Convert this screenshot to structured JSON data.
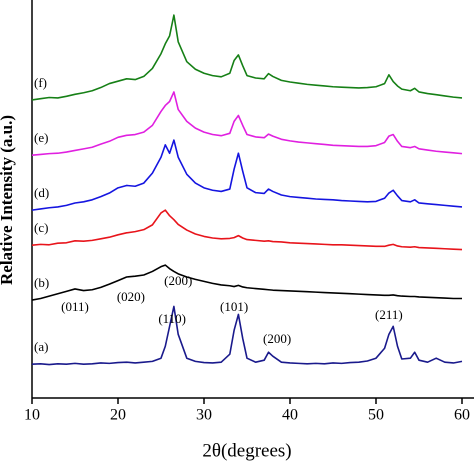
{
  "chart_data": {
    "type": "line",
    "xlabel": "2θ(degrees)",
    "ylabel": "Relative Intensity (a.u.)",
    "xlim": [
      10,
      60
    ],
    "xticks": [
      10,
      20,
      30,
      40,
      50,
      60
    ],
    "ylim": [
      0,
      100
    ],
    "x": [
      10,
      11,
      12,
      13,
      14,
      15,
      16,
      17,
      18,
      19,
      20,
      21,
      22,
      23,
      24,
      25,
      25.5,
      26,
      26.5,
      27,
      28,
      29,
      30,
      31,
      32,
      33,
      33.5,
      34,
      34.5,
      35,
      36,
      37,
      37.5,
      38,
      39,
      40,
      41,
      42,
      43,
      44,
      45,
      46,
      47,
      48,
      49,
      50,
      51,
      51.5,
      52,
      52.5,
      53,
      54,
      54.5,
      55,
      56,
      57,
      58,
      59,
      60
    ],
    "series": [
      {
        "name": "(a)",
        "color": "#1a1a8c",
        "values": [
          8.5,
          8.6,
          8.4,
          8.6,
          8.5,
          8.7,
          8.5,
          8.6,
          8.8,
          8.7,
          8.9,
          9.0,
          8.8,
          9.0,
          9.2,
          10,
          13,
          18,
          23,
          16,
          10,
          9.2,
          8.9,
          8.8,
          9.0,
          11,
          17,
          21,
          15,
          10,
          9.0,
          9.5,
          11.5,
          10.5,
          9,
          8.8,
          8.7,
          8.6,
          8.7,
          8.6,
          8.8,
          8.7,
          8.9,
          9,
          9.3,
          10,
          12.5,
          16,
          18,
          13,
          9.8,
          10,
          11.5,
          9.5,
          9,
          10,
          9,
          8.8,
          9.2
        ]
      },
      {
        "name": "(b)",
        "color": "#000000",
        "values": [
          24.6,
          25.0,
          25.6,
          26.2,
          26.8,
          27.4,
          27.0,
          27.2,
          27.8,
          28.6,
          29.5,
          30.4,
          30.6,
          30.9,
          31.8,
          33,
          33.4,
          32.5,
          31.8,
          31.2,
          30.4,
          29.8,
          29.3,
          28.8,
          28.4,
          28.2,
          28.0,
          28.3,
          27.9,
          27.7,
          27.5,
          27.3,
          27.2,
          27.1,
          27.0,
          26.9,
          26.8,
          26.7,
          26.6,
          26.5,
          26.4,
          26.3,
          26.2,
          26.1,
          26.0,
          25.9,
          25.8,
          25.8,
          25.9,
          25.7,
          25.6,
          25.5,
          25.5,
          25.4,
          25.3,
          25.2,
          25.1,
          25.0,
          25.0
        ]
      },
      {
        "name": "(c)",
        "color": "#e8141b",
        "values": [
          38.4,
          38.6,
          38.5,
          38.9,
          39.0,
          39.5,
          39.4,
          39.6,
          40.0,
          40.4,
          41.0,
          41.5,
          41.8,
          42.3,
          43.5,
          46.5,
          47.2,
          45.8,
          44.8,
          43.6,
          42.2,
          41.2,
          40.6,
          40.2,
          40.0,
          40.1,
          40.3,
          40.8,
          40.2,
          39.8,
          39.6,
          39.4,
          39.5,
          39.3,
          39.2,
          39.0,
          38.9,
          38.8,
          38.7,
          38.6,
          38.5,
          38.5,
          38.4,
          38.3,
          38.2,
          38.1,
          38.1,
          38.4,
          38.6,
          38.2,
          38.0,
          37.9,
          38.0,
          37.8,
          37.7,
          37.6,
          37.5,
          37.4,
          37.3
        ]
      },
      {
        "name": "(d)",
        "color": "#1515e0",
        "values": [
          47.2,
          47.5,
          47.8,
          48.0,
          48.4,
          49.0,
          49.3,
          49.8,
          50.6,
          51.5,
          52.8,
          53.4,
          53.2,
          54.0,
          56.5,
          60.5,
          63.6,
          61.5,
          64.8,
          60.5,
          56.2,
          54.0,
          52.8,
          52.2,
          51.9,
          52.5,
          57.5,
          61.5,
          57.0,
          52.8,
          51.6,
          51.4,
          52.5,
          51.9,
          51.0,
          50.6,
          50.4,
          50.2,
          50.0,
          49.9,
          49.8,
          49.6,
          49.5,
          49.4,
          49.3,
          49.4,
          50.2,
          51.5,
          52.2,
          50.8,
          49.6,
          49.3,
          49.8,
          49.0,
          48.8,
          48.6,
          48.4,
          48.2,
          48.0
        ]
      },
      {
        "name": "(e)",
        "color": "#e020e0",
        "values": [
          61.0,
          61.2,
          61.4,
          61.5,
          61.8,
          62.2,
          62.6,
          63.0,
          63.8,
          64.5,
          65.5,
          66.0,
          66.2,
          66.8,
          68.5,
          72.0,
          73.5,
          74.5,
          76.9,
          72.5,
          69.5,
          67.8,
          66.8,
          66.2,
          65.9,
          66.5,
          69.5,
          71.0,
          68.5,
          66.2,
          65.6,
          65.4,
          66.3,
          65.8,
          65.0,
          64.6,
          64.3,
          64.1,
          63.9,
          63.7,
          63.5,
          63.4,
          63.3,
          63.2,
          63.2,
          63.4,
          64.2,
          65.8,
          66.2,
          64.5,
          63.2,
          62.9,
          63.2,
          62.6,
          62.3,
          62.0,
          61.8,
          61.6,
          61.4
        ]
      },
      {
        "name": "(f)",
        "color": "#168016",
        "values": [
          74.9,
          75.2,
          75.5,
          75.4,
          75.8,
          76.3,
          76.7,
          77.2,
          78.0,
          79.0,
          79.6,
          80.2,
          80.0,
          80.8,
          82.8,
          86.5,
          89.0,
          91.0,
          96.2,
          89.5,
          84.5,
          82.6,
          81.6,
          81.0,
          80.7,
          81.6,
          84.8,
          86.2,
          83.5,
          81.0,
          80.4,
          80.2,
          81.5,
          80.8,
          79.8,
          79.4,
          79.1,
          78.8,
          78.6,
          78.4,
          78.2,
          78.1,
          78.0,
          77.9,
          78.0,
          78.2,
          79.0,
          81.2,
          79.5,
          78.4,
          77.6,
          77.2,
          77.8,
          76.9,
          76.5,
          76.2,
          75.9,
          75.6,
          75.4
        ]
      }
    ],
    "annotations": [
      {
        "text": "(011)",
        "x": 15,
        "y": 22.6
      },
      {
        "text": "(020)",
        "x": 21.5,
        "y": 25.1
      },
      {
        "text": "(200)",
        "x": 27,
        "y": 29.1
      },
      {
        "text": "(110)",
        "x": 26.3,
        "y": 19.6
      },
      {
        "text": "(101)",
        "x": 33.5,
        "y": 22.6
      },
      {
        "text": "(200)",
        "x": 38.5,
        "y": 14.6
      },
      {
        "text": "(211)",
        "x": 51.5,
        "y": 20.6
      }
    ]
  }
}
